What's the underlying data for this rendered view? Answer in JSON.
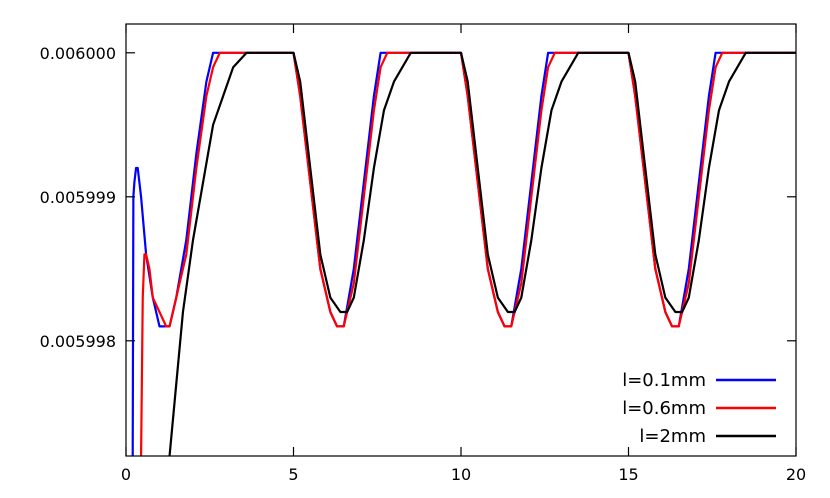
{
  "chart_data": {
    "type": "line",
    "title": "",
    "xlabel": "",
    "ylabel": "",
    "xlim": [
      0,
      20
    ],
    "ylim": [
      0.0059972,
      0.0060002
    ],
    "xticks": [
      0,
      5,
      10,
      15,
      20
    ],
    "xtick_labels": [
      "0",
      "5",
      "10",
      "15",
      "20"
    ],
    "yticks": [
      0.005998,
      0.005999,
      0.006
    ],
    "ytick_labels": [
      "0.005998",
      "0.005999",
      "0.006000"
    ],
    "grid": false,
    "legend_position": "bottom-right",
    "series": [
      {
        "name": "l=0.1mm",
        "color": "#0000ff",
        "x": [
          0.2,
          0.22,
          0.25,
          0.3,
          0.35,
          0.45,
          0.6,
          0.8,
          1.0,
          1.2,
          1.3,
          1.5,
          1.8,
          2.1,
          2.4,
          2.6,
          2.8,
          3.2,
          4.0,
          5.0,
          5.2,
          5.5,
          5.8,
          6.1,
          6.3,
          6.5,
          6.8,
          7.1,
          7.4,
          7.6,
          7.8,
          8.2,
          9.0,
          10.0,
          10.2,
          10.5,
          10.8,
          11.1,
          11.3,
          11.5,
          11.8,
          12.1,
          12.4,
          12.6,
          12.8,
          13.2,
          14.0,
          15.0,
          15.2,
          15.5,
          15.8,
          16.1,
          16.3,
          16.5,
          16.8,
          17.1,
          17.4,
          17.6,
          17.8,
          18.2,
          19.0,
          20.0
        ],
        "y": [
          0.0059972,
          0.005999,
          0.0059991,
          0.0059992,
          0.0059992,
          0.005999,
          0.0059986,
          0.0059983,
          0.0059981,
          0.0059981,
          0.0059981,
          0.0059983,
          0.0059987,
          0.0059993,
          0.0059998,
          0.006,
          0.006,
          0.006,
          0.006,
          0.006,
          0.0059997,
          0.0059991,
          0.0059985,
          0.0059982,
          0.0059981,
          0.0059981,
          0.0059985,
          0.0059991,
          0.0059997,
          0.006,
          0.006,
          0.006,
          0.006,
          0.006,
          0.0059997,
          0.0059991,
          0.0059985,
          0.0059982,
          0.0059981,
          0.0059981,
          0.0059985,
          0.0059991,
          0.0059997,
          0.006,
          0.006,
          0.006,
          0.006,
          0.006,
          0.0059997,
          0.0059991,
          0.0059985,
          0.0059982,
          0.0059981,
          0.0059981,
          0.0059985,
          0.0059991,
          0.0059997,
          0.006,
          0.006,
          0.006,
          0.006,
          0.006
        ]
      },
      {
        "name": "l=0.6mm",
        "color": "#ff0000",
        "x": [
          0.45,
          0.5,
          0.55,
          0.6,
          0.7,
          0.8,
          1.0,
          1.2,
          1.3,
          1.5,
          1.8,
          2.1,
          2.4,
          2.6,
          2.8,
          3.2,
          4.0,
          5.0,
          5.2,
          5.5,
          5.8,
          6.1,
          6.3,
          6.5,
          6.8,
          7.1,
          7.4,
          7.6,
          7.8,
          8.2,
          9.0,
          10.0,
          10.2,
          10.5,
          10.8,
          11.1,
          11.3,
          11.5,
          11.8,
          12.1,
          12.4,
          12.6,
          12.8,
          13.2,
          14.0,
          15.0,
          15.2,
          15.5,
          15.8,
          16.1,
          16.3,
          16.5,
          16.8,
          17.1,
          17.4,
          17.6,
          17.8,
          18.2,
          19.0,
          20.0
        ],
        "y": [
          0.0059972,
          0.0059983,
          0.0059986,
          0.0059986,
          0.0059985,
          0.0059983,
          0.0059982,
          0.0059981,
          0.0059981,
          0.0059983,
          0.0059986,
          0.0059992,
          0.0059997,
          0.0059999,
          0.006,
          0.006,
          0.006,
          0.006,
          0.0059997,
          0.0059991,
          0.0059985,
          0.0059982,
          0.0059981,
          0.0059981,
          0.0059984,
          0.005999,
          0.0059996,
          0.0059999,
          0.006,
          0.006,
          0.006,
          0.006,
          0.0059997,
          0.0059991,
          0.0059985,
          0.0059982,
          0.0059981,
          0.0059981,
          0.0059984,
          0.005999,
          0.0059996,
          0.0059999,
          0.006,
          0.006,
          0.006,
          0.006,
          0.0059997,
          0.0059991,
          0.0059985,
          0.0059982,
          0.0059981,
          0.0059981,
          0.0059984,
          0.005999,
          0.0059996,
          0.0059999,
          0.006,
          0.006,
          0.006,
          0.006
        ]
      },
      {
        "name": "l=2mm",
        "color": "#000000",
        "x": [
          1.3,
          1.5,
          1.7,
          2.0,
          2.3,
          2.6,
          2.9,
          3.2,
          3.6,
          4.0,
          5.0,
          5.2,
          5.5,
          5.8,
          6.1,
          6.4,
          6.6,
          6.8,
          7.1,
          7.4,
          7.7,
          8.0,
          8.5,
          9.0,
          10.0,
          10.2,
          10.5,
          10.8,
          11.1,
          11.4,
          11.6,
          11.8,
          12.1,
          12.4,
          12.7,
          13.0,
          13.5,
          14.0,
          15.0,
          15.2,
          15.5,
          15.8,
          16.1,
          16.4,
          16.6,
          16.8,
          17.1,
          17.4,
          17.7,
          18.0,
          18.5,
          19.0,
          20.0
        ],
        "y": [
          0.0059972,
          0.0059977,
          0.0059982,
          0.0059987,
          0.0059991,
          0.0059995,
          0.0059997,
          0.0059999,
          0.006,
          0.006,
          0.006,
          0.0059998,
          0.0059992,
          0.0059986,
          0.0059983,
          0.0059982,
          0.0059982,
          0.0059983,
          0.0059987,
          0.0059992,
          0.0059996,
          0.0059998,
          0.006,
          0.006,
          0.006,
          0.0059998,
          0.0059992,
          0.0059986,
          0.0059983,
          0.0059982,
          0.0059982,
          0.0059983,
          0.0059987,
          0.0059992,
          0.0059996,
          0.0059998,
          0.006,
          0.006,
          0.006,
          0.0059998,
          0.0059992,
          0.0059986,
          0.0059983,
          0.0059982,
          0.0059982,
          0.0059983,
          0.0059987,
          0.0059992,
          0.0059996,
          0.0059998,
          0.006,
          0.006,
          0.006
        ]
      }
    ]
  }
}
